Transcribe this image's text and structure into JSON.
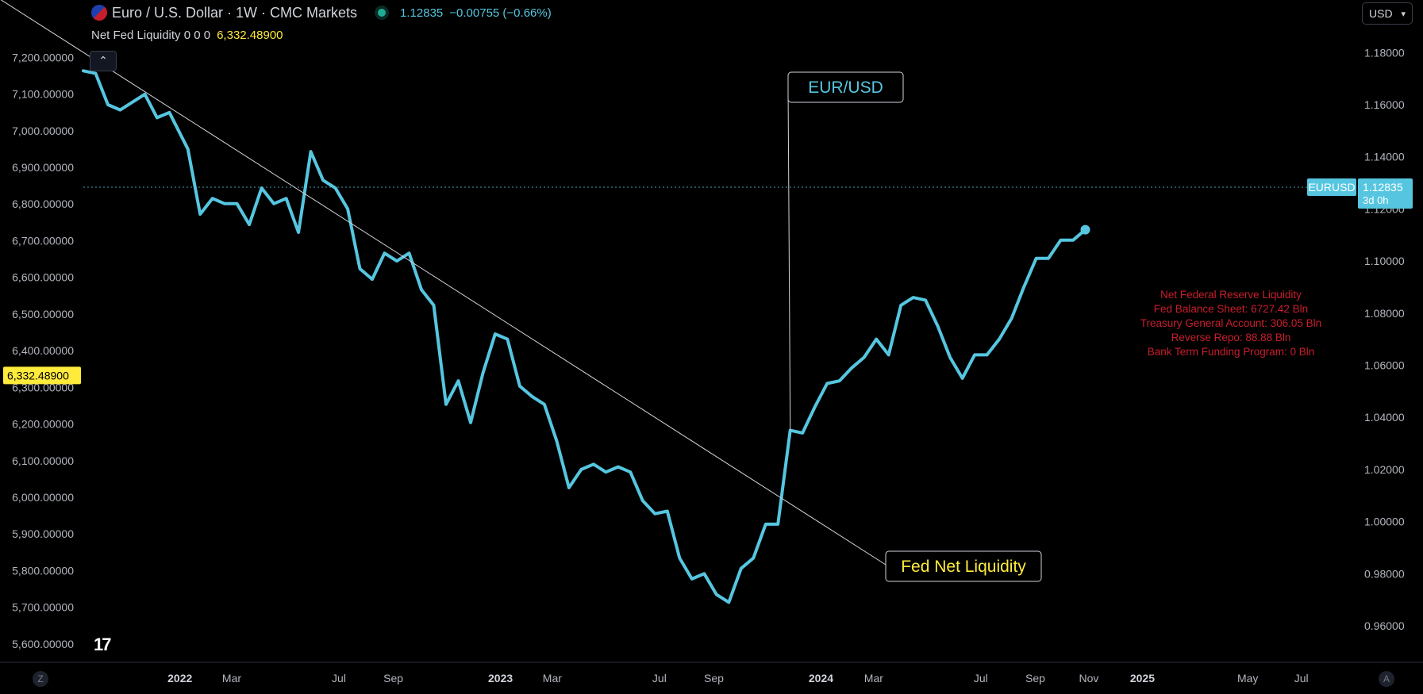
{
  "header": {
    "symbol_title": "Euro / U.S. Dollar · 1W · CMC Markets",
    "last_price": "1.12835",
    "change": "−0.00755 (−0.66%)",
    "indicator_label": "Net Fed Liquidity 0 0 0",
    "indicator_value": "6,332.48900",
    "currency": "USD"
  },
  "colors": {
    "eurusd": "#56c6e0",
    "liquidity": "#ffeb3b",
    "info_text": "#c81e2c",
    "background": "#000000"
  },
  "icons": {
    "flag": "eur-usd-flag-icon",
    "status": "market-status-dot-icon",
    "collapse": "chevron-up-icon",
    "currency": "chevron-down-icon"
  },
  "chart_data": {
    "type": "line",
    "x_tick_labels": [
      "2022",
      "Mar",
      "Jul",
      "Sep",
      "2023",
      "Mar",
      "Jul",
      "Sep",
      "2024",
      "Mar",
      "Jul",
      "Sep",
      "Nov",
      "2025",
      "May",
      "Jul"
    ],
    "x_tick_dates": [
      "2022-01-01",
      "2022-03-01",
      "2022-07-01",
      "2022-09-01",
      "2023-01-01",
      "2023-03-01",
      "2023-07-01",
      "2023-09-01",
      "2024-01-01",
      "2024-03-01",
      "2024-07-01",
      "2024-09-01",
      "2024-11-01",
      "2025-01-01",
      "2025-05-01",
      "2025-07-01"
    ],
    "x_range": [
      "2021-09-13",
      "2025-08-29"
    ],
    "left_axis": {
      "ticks": [
        "7,200.00000",
        "7,100.00000",
        "7,000.00000",
        "6,900.00000",
        "6,800.00000",
        "6,700.00000",
        "6,600.00000",
        "6,500.00000",
        "6,400.00000",
        "6,300.00000",
        "6,200.00000",
        "6,100.00000",
        "6,000.00000",
        "5,900.00000",
        "5,800.00000",
        "5,700.00000",
        "5,600.00000"
      ],
      "range": [
        5550,
        7270
      ]
    },
    "right_axis": {
      "ticks": [
        "1.18000",
        "1.16000",
        "1.14000",
        "1.12000",
        "1.10000",
        "1.08000",
        "1.06000",
        "1.04000",
        "1.02000",
        "1.00000",
        "0.98000",
        "0.96000"
      ],
      "range": [
        0.946,
        1.188
      ]
    },
    "series": [
      {
        "name": "EUR/USD",
        "axis": "right",
        "points": [
          [
            "2021-09-13",
            1.173
          ],
          [
            "2021-09-27",
            1.172
          ],
          [
            "2021-10-11",
            1.16
          ],
          [
            "2021-10-25",
            1.158
          ],
          [
            "2021-11-08",
            1.161
          ],
          [
            "2021-11-22",
            1.164
          ],
          [
            "2021-12-06",
            1.155
          ],
          [
            "2021-12-20",
            1.157
          ],
          [
            "2022-01-10",
            1.143
          ],
          [
            "2022-01-24",
            1.118
          ],
          [
            "2022-02-07",
            1.124
          ],
          [
            "2022-02-21",
            1.122
          ],
          [
            "2022-03-07",
            1.122
          ],
          [
            "2022-03-21",
            1.114
          ],
          [
            "2022-04-04",
            1.128
          ],
          [
            "2022-04-18",
            1.122
          ],
          [
            "2022-05-02",
            1.124
          ],
          [
            "2022-05-16",
            1.111
          ],
          [
            "2022-05-30",
            1.142
          ],
          [
            "2022-06-13",
            1.131
          ],
          [
            "2022-06-27",
            1.128
          ],
          [
            "2022-07-11",
            1.12
          ],
          [
            "2022-07-25",
            1.097
          ],
          [
            "2022-08-08",
            1.093
          ],
          [
            "2022-08-22",
            1.103
          ],
          [
            "2022-09-05",
            1.1
          ],
          [
            "2022-09-19",
            1.103
          ],
          [
            "2022-10-03",
            1.089
          ],
          [
            "2022-10-17",
            1.083
          ],
          [
            "2022-10-31",
            1.045
          ],
          [
            "2022-11-14",
            1.054
          ],
          [
            "2022-11-28",
            1.038
          ],
          [
            "2022-12-12",
            1.057
          ],
          [
            "2022-12-26",
            1.072
          ],
          [
            "2023-01-09",
            1.07
          ],
          [
            "2023-01-23",
            1.052
          ],
          [
            "2023-02-06",
            1.048
          ],
          [
            "2023-02-20",
            1.045
          ],
          [
            "2023-03-06",
            1.031
          ],
          [
            "2023-03-20",
            1.013
          ],
          [
            "2023-04-03",
            1.02
          ],
          [
            "2023-04-17",
            1.022
          ],
          [
            "2023-05-01",
            1.019
          ],
          [
            "2023-05-15",
            1.021
          ],
          [
            "2023-05-29",
            1.019
          ],
          [
            "2023-06-12",
            1.008
          ],
          [
            "2023-06-26",
            1.003
          ],
          [
            "2023-07-10",
            1.004
          ],
          [
            "2023-07-24",
            0.986
          ],
          [
            "2023-08-07",
            0.978
          ],
          [
            "2023-08-21",
            0.98
          ],
          [
            "2023-09-04",
            0.972
          ],
          [
            "2023-09-18",
            0.969
          ],
          [
            "2023-10-02",
            0.982
          ],
          [
            "2023-10-16",
            0.986
          ],
          [
            "2023-10-30",
            0.999
          ],
          [
            "2023-11-13",
            0.999
          ],
          [
            "2023-11-27",
            1.035
          ],
          [
            "2023-12-11",
            1.034
          ],
          [
            "2023-12-25",
            1.044
          ],
          [
            "2024-01-08",
            1.053
          ],
          [
            "2024-01-22",
            1.054
          ],
          [
            "2024-02-05",
            1.059
          ],
          [
            "2024-02-19",
            1.063
          ],
          [
            "2024-03-04",
            1.07
          ],
          [
            "2024-03-18",
            1.064
          ],
          [
            "2024-04-01",
            1.083
          ],
          [
            "2024-04-15",
            1.086
          ],
          [
            "2024-04-29",
            1.085
          ],
          [
            "2024-05-13",
            1.075
          ],
          [
            "2024-05-27",
            1.063
          ],
          [
            "2024-06-10",
            1.055
          ],
          [
            "2024-06-24",
            1.064
          ],
          [
            "2024-07-08",
            1.064
          ],
          [
            "2024-07-22",
            1.07
          ],
          [
            "2024-08-05",
            1.078
          ],
          [
            "2024-08-19",
            1.09
          ],
          [
            "2024-09-02",
            1.101
          ],
          [
            "2024-09-16",
            1.101
          ],
          [
            "2024-09-30",
            1.108
          ],
          [
            "2024-10-14",
            1.108
          ],
          [
            "2024-10-28",
            1.112
          ]
        ],
        "note": "points listed chronologically across the visible window"
      },
      {
        "name": "Fed Net Liquidity",
        "axis": "left",
        "points": []
      }
    ],
    "last_value": {
      "label": "EURUSD",
      "value": "1.12835",
      "countdown": "3d 0h"
    },
    "left_last_value": "6,332.48900",
    "callouts": [
      {
        "text": "EUR/USD",
        "series": "EUR/USD"
      },
      {
        "text": "Fed Net Liquidity",
        "series": "Fed Net Liquidity"
      }
    ],
    "info_box": [
      "Net Federal Reserve Liquidity",
      "Fed Balance Sheet: 6727.42 Bln",
      "Treasury General Account: 306.05 Bln",
      "Reverse Repo: 88.88 Bln",
      "Bank Term Funding Program: 0 Bln"
    ],
    "grid": false,
    "legend": "top-left"
  },
  "corners": {
    "left": "Z",
    "right": "A"
  }
}
